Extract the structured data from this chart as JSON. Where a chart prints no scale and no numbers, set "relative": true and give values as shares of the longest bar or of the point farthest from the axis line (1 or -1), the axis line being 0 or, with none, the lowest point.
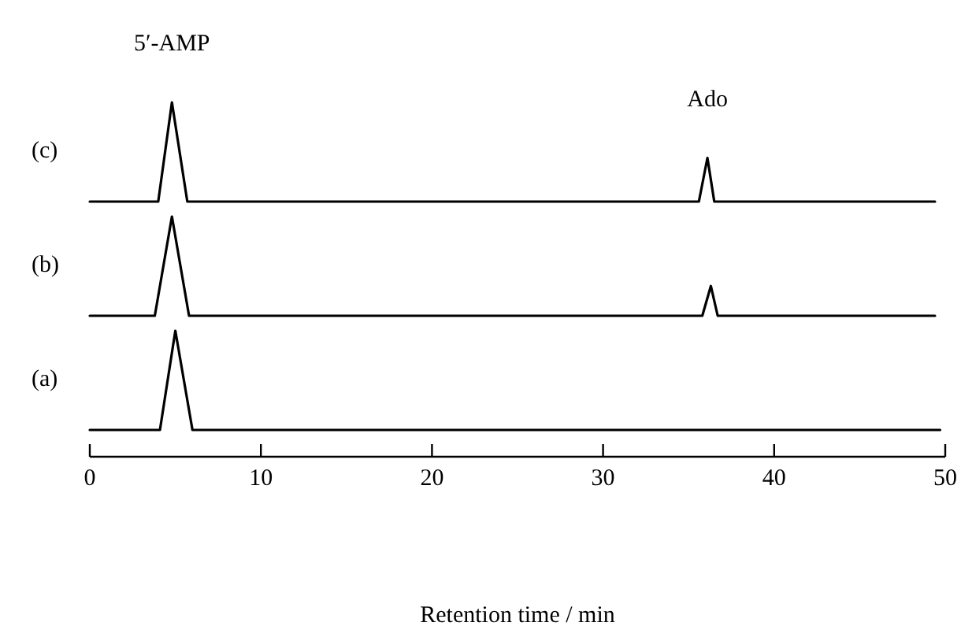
{
  "chart_data": [
    {
      "type": "line",
      "title": "(c)",
      "relative": true,
      "xlim": [
        0,
        50
      ],
      "tick_labels": false,
      "series": [
        {
          "color": "#000000",
          "x": [
            0,
            4.0,
            4.8,
            5.7,
            35.6,
            36.1,
            36.5,
            49.4
          ],
          "values": [
            0,
            0,
            1,
            0,
            0,
            0.44,
            0,
            0
          ]
        }
      ],
      "annotations": [
        {
          "text": "5′-AMP",
          "x": 4.8,
          "y": 1
        },
        {
          "text": "Ado",
          "x": 36.1,
          "y": 0.44
        }
      ]
    },
    {
      "type": "line",
      "title": "(b)",
      "relative": true,
      "xlim": [
        0,
        50
      ],
      "tick_labels": false,
      "series": [
        {
          "color": "#000000",
          "x": [
            0,
            3.8,
            4.8,
            5.8,
            35.8,
            36.3,
            36.7,
            49.4
          ],
          "values": [
            0,
            0,
            1,
            0,
            0,
            0.3,
            0,
            0
          ]
        }
      ]
    },
    {
      "type": "line",
      "title": "(a)",
      "relative": true,
      "xlim": [
        0,
        50
      ],
      "xticks": [
        0,
        10,
        20,
        30,
        40,
        50
      ],
      "tick_labels": "x",
      "xlabel": "Retention time / min",
      "series": [
        {
          "color": "#000000",
          "x": [
            0,
            4.1,
            5.0,
            6.0,
            49.7
          ],
          "values": [
            0,
            0,
            1,
            0,
            0
          ]
        }
      ]
    }
  ]
}
